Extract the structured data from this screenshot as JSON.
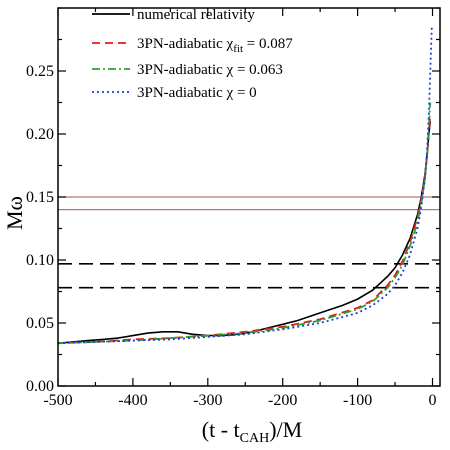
{
  "chart_data": {
    "type": "line",
    "xlabel": "(t - t_CAH)/M",
    "xlabel_main": "(t - t",
    "xlabel_sub": "CAH",
    "xlabel_tail": ")/M",
    "ylabel": "Mω",
    "xlim": [
      -500,
      10
    ],
    "ylim": [
      0,
      0.3
    ],
    "xticks": [
      -500,
      -400,
      -300,
      -200,
      -100,
      0
    ],
    "xtick_labels": [
      "-500",
      "-400",
      "-300",
      "-200",
      "-100",
      "0"
    ],
    "yticks": [
      0,
      0.05,
      0.1,
      0.15,
      0.2,
      0.25
    ],
    "ytick_labels": [
      "0.00",
      "0.05",
      "0.10",
      "0.15",
      "0.20",
      "0.25"
    ],
    "grid": false,
    "legend_position": "top-left",
    "legend": [
      {
        "text": "numerical relativity"
      },
      {
        "text": "3PN-adiabatic χ",
        "sub": "fit",
        "tail": " = 0.087"
      },
      {
        "text": "3PN-adiabatic χ",
        "sub": "",
        "tail": " = 0.063"
      },
      {
        "text": "3PN-adiabatic χ",
        "sub": "",
        "tail": " = 0"
      }
    ],
    "series": [
      {
        "color": "#000000",
        "dash": "",
        "x": [
          -500,
          -480,
          -460,
          -440,
          -420,
          -400,
          -380,
          -360,
          -350,
          -340,
          -320,
          -300,
          -280,
          -260,
          -240,
          -220,
          -200,
          -180,
          -160,
          -140,
          -120,
          -100,
          -80,
          -60,
          -50,
          -40,
          -30,
          -20,
          -15,
          -10,
          -7,
          -5,
          -3
        ],
        "y": [
          0.034,
          0.035,
          0.036,
          0.037,
          0.038,
          0.04,
          0.042,
          0.043,
          0.043,
          0.043,
          0.041,
          0.04,
          0.04,
          0.041,
          0.043,
          0.046,
          0.049,
          0.052,
          0.056,
          0.06,
          0.064,
          0.069,
          0.076,
          0.087,
          0.094,
          0.104,
          0.117,
          0.136,
          0.15,
          0.168,
          0.185,
          0.2,
          0.21
        ]
      },
      {
        "color": "#e41a1c",
        "dash": "8,5",
        "x": [
          -500,
          -450,
          -400,
          -350,
          -300,
          -250,
          -200,
          -150,
          -100,
          -80,
          -60,
          -50,
          -40,
          -30,
          -20,
          -15,
          -10,
          -7,
          -5,
          -3
        ],
        "y": [
          0.034,
          0.035,
          0.037,
          0.038,
          0.04,
          0.043,
          0.047,
          0.053,
          0.062,
          0.068,
          0.08,
          0.088,
          0.099,
          0.114,
          0.134,
          0.148,
          0.166,
          0.185,
          0.2,
          0.215
        ]
      },
      {
        "color": "#2ca02c",
        "dash": "8,3,2,3",
        "x": [
          -500,
          -450,
          -400,
          -350,
          -300,
          -250,
          -200,
          -150,
          -100,
          -80,
          -60,
          -50,
          -40,
          -30,
          -20,
          -15,
          -10,
          -7,
          -5,
          -3
        ],
        "y": [
          0.034,
          0.035,
          0.036,
          0.038,
          0.04,
          0.042,
          0.046,
          0.052,
          0.061,
          0.067,
          0.078,
          0.086,
          0.096,
          0.111,
          0.13,
          0.145,
          0.165,
          0.185,
          0.205,
          0.225
        ]
      },
      {
        "color": "#1f3fd6",
        "dash": "2,3",
        "x": [
          -500,
          -450,
          -400,
          -350,
          -300,
          -250,
          -200,
          -150,
          -100,
          -80,
          -60,
          -50,
          -40,
          -30,
          -20,
          -15,
          -10,
          -7,
          -5,
          -3,
          -1
        ],
        "y": [
          0.034,
          0.035,
          0.036,
          0.037,
          0.039,
          0.041,
          0.045,
          0.05,
          0.058,
          0.064,
          0.073,
          0.08,
          0.09,
          0.104,
          0.125,
          0.142,
          0.165,
          0.19,
          0.215,
          0.25,
          0.285
        ]
      }
    ],
    "hlines": [
      {
        "y": 0.15,
        "color": "#b07b70",
        "dash": ""
      },
      {
        "y": 0.14,
        "color": "#b07b70",
        "dash": ""
      },
      {
        "y": 0.097,
        "color": "#000000",
        "dash": "14,7"
      },
      {
        "y": 0.078,
        "color": "#000000",
        "dash": "14,7"
      }
    ]
  }
}
